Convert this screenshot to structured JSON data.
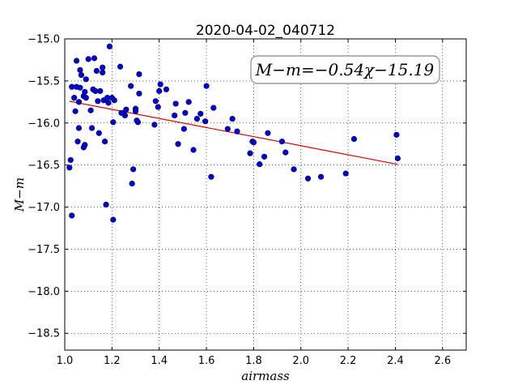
{
  "chart_data": {
    "type": "scatter",
    "title": "2020-04-02_040712",
    "xlabel": "airmass",
    "ylabel": "M−m",
    "xlim": [
      1.0,
      2.7
    ],
    "ylim": [
      -15.0,
      -18.7
    ],
    "y_inverted": true,
    "x_ticks": [
      1.0,
      1.2,
      1.4,
      1.6,
      1.8,
      2.0,
      2.2,
      2.4,
      2.6
    ],
    "x_tick_labels": [
      "1.0",
      "1.2",
      "1.4",
      "1.6",
      "1.8",
      "2.0",
      "2.2",
      "2.4",
      "2.6"
    ],
    "y_ticks": [
      -15.0,
      -15.5,
      -16.0,
      -16.5,
      -17.0,
      -17.5,
      -18.0,
      -18.5
    ],
    "y_tick_labels": [
      "−15.0",
      "−15.5",
      "−16.0",
      "−16.5",
      "−17.0",
      "−17.5",
      "−18.0",
      "−18.5"
    ],
    "grid": true,
    "annotation": "M−m=−0.54χ−15.19",
    "fit": {
      "slope": -0.54,
      "intercept": -15.19,
      "x_range": [
        1.02,
        2.41
      ],
      "color": "#dd0000"
    },
    "point_color": "#0000cc",
    "points": [
      [
        1.02,
        -16.53
      ],
      [
        1.025,
        -16.44
      ],
      [
        1.03,
        -17.1
      ],
      [
        1.03,
        -15.57
      ],
      [
        1.04,
        -15.7
      ],
      [
        1.045,
        -15.86
      ],
      [
        1.05,
        -15.26
      ],
      [
        1.05,
        -15.57
      ],
      [
        1.055,
        -16.22
      ],
      [
        1.06,
        -16.06
      ],
      [
        1.06,
        -15.75
      ],
      [
        1.065,
        -15.37
      ],
      [
        1.065,
        -15.58
      ],
      [
        1.07,
        -15.43
      ],
      [
        1.08,
        -15.68
      ],
      [
        1.08,
        -16.29
      ],
      [
        1.085,
        -16.26
      ],
      [
        1.085,
        -15.63
      ],
      [
        1.09,
        -15.48
      ],
      [
        1.09,
        -15.7
      ],
      [
        1.1,
        -15.24
      ],
      [
        1.11,
        -15.85
      ],
      [
        1.115,
        -16.06
      ],
      [
        1.12,
        -15.6
      ],
      [
        1.125,
        -15.23
      ],
      [
        1.13,
        -15.62
      ],
      [
        1.135,
        -15.38
      ],
      [
        1.14,
        -15.74
      ],
      [
        1.145,
        -16.12
      ],
      [
        1.15,
        -15.62
      ],
      [
        1.16,
        -15.34
      ],
      [
        1.16,
        -15.4
      ],
      [
        1.165,
        -15.73
      ],
      [
        1.17,
        -16.22
      ],
      [
        1.175,
        -16.97
      ],
      [
        1.18,
        -15.7
      ],
      [
        1.185,
        -15.76
      ],
      [
        1.19,
        -15.09
      ],
      [
        1.2,
        -15.7
      ],
      [
        1.205,
        -15.99
      ],
      [
        1.205,
        -17.15
      ],
      [
        1.21,
        -15.73
      ],
      [
        1.235,
        -15.33
      ],
      [
        1.24,
        -15.88
      ],
      [
        1.25,
        -15.88
      ],
      [
        1.255,
        -15.91
      ],
      [
        1.26,
        -15.84
      ],
      [
        1.28,
        -15.56
      ],
      [
        1.285,
        -16.72
      ],
      [
        1.29,
        -16.55
      ],
      [
        1.3,
        -15.83
      ],
      [
        1.3,
        -15.86
      ],
      [
        1.305,
        -15.97
      ],
      [
        1.31,
        -15.99
      ],
      [
        1.315,
        -15.42
      ],
      [
        1.315,
        -15.65
      ],
      [
        1.38,
        -16.02
      ],
      [
        1.385,
        -15.74
      ],
      [
        1.395,
        -15.81
      ],
      [
        1.4,
        -15.62
      ],
      [
        1.405,
        -15.54
      ],
      [
        1.43,
        -15.6
      ],
      [
        1.465,
        -15.91
      ],
      [
        1.47,
        -15.77
      ],
      [
        1.48,
        -16.25
      ],
      [
        1.505,
        -16.07
      ],
      [
        1.51,
        -15.88
      ],
      [
        1.525,
        -15.75
      ],
      [
        1.545,
        -16.32
      ],
      [
        1.56,
        -15.95
      ],
      [
        1.575,
        -15.89
      ],
      [
        1.595,
        -15.98
      ],
      [
        1.6,
        -15.56
      ],
      [
        1.62,
        -16.64
      ],
      [
        1.63,
        -15.82
      ],
      [
        1.69,
        -16.07
      ],
      [
        1.71,
        -15.95
      ],
      [
        1.73,
        -16.1
      ],
      [
        1.785,
        -16.36
      ],
      [
        1.795,
        -16.22
      ],
      [
        1.8,
        -16.23
      ],
      [
        1.825,
        -16.49
      ],
      [
        1.845,
        -16.4
      ],
      [
        1.86,
        -16.12
      ],
      [
        1.92,
        -16.22
      ],
      [
        1.935,
        -16.35
      ],
      [
        1.97,
        -16.55
      ],
      [
        2.03,
        -16.66
      ],
      [
        2.085,
        -16.64
      ],
      [
        2.19,
        -16.6
      ],
      [
        2.225,
        -16.19
      ],
      [
        2.405,
        -16.14
      ],
      [
        2.41,
        -16.42
      ]
    ]
  }
}
